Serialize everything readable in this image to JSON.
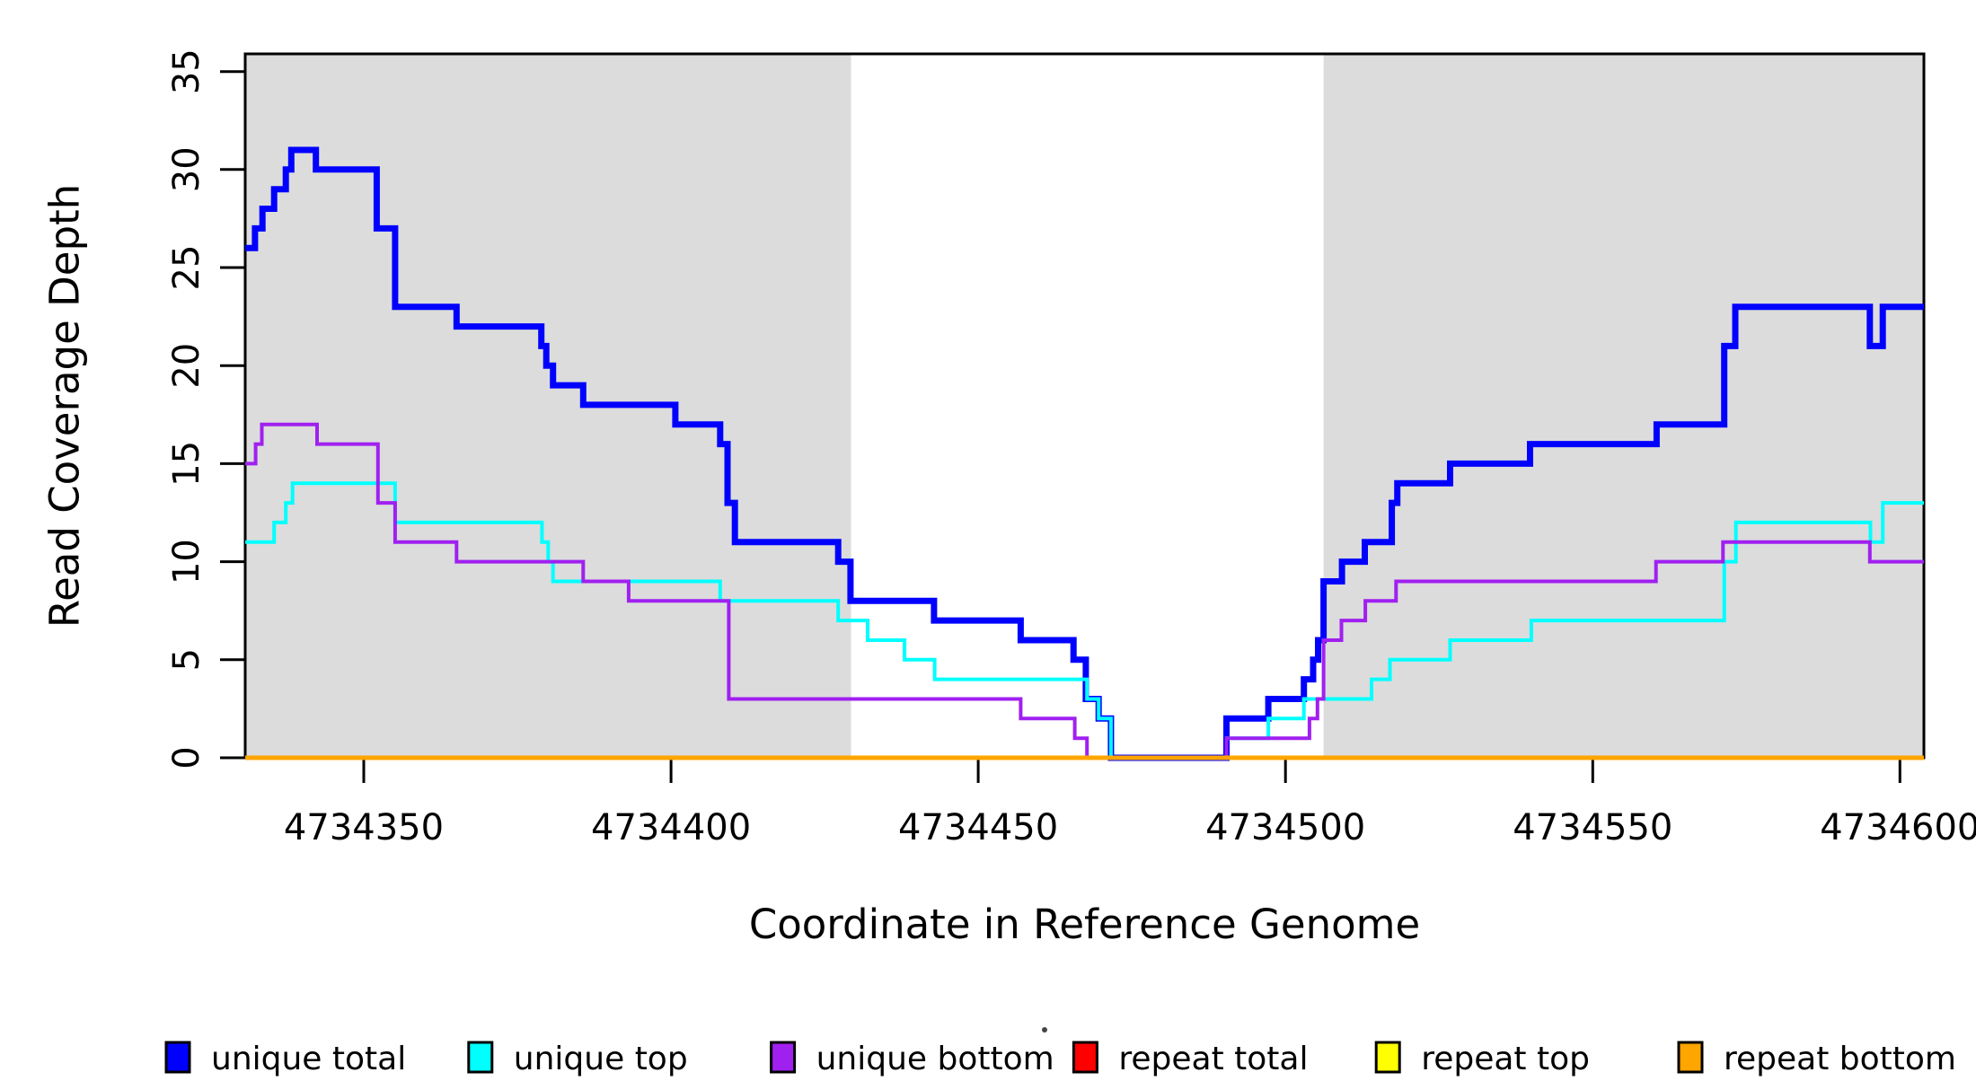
{
  "figure": {
    "background": "#ffffff"
  },
  "chart_data": {
    "type": "line",
    "subtype": "step-coverage",
    "title": "",
    "xlabel": "Coordinate in Reference Genome",
    "ylabel": "Read Coverage Depth",
    "xlim": [
      4734330.7,
      4734603.9
    ],
    "ylim": [
      0,
      35.9
    ],
    "grid": false,
    "xticks": [
      {
        "value": 4734350,
        "label": "4734350"
      },
      {
        "value": 4734400,
        "label": "4734400"
      },
      {
        "value": 4734450,
        "label": "4734450"
      },
      {
        "value": 4734500,
        "label": "4734500"
      },
      {
        "value": 4734550,
        "label": "4734550"
      },
      {
        "value": 4734600,
        "label": "4734600"
      }
    ],
    "yticks": [
      {
        "value": 0,
        "label": "0"
      },
      {
        "value": 5,
        "label": "5"
      },
      {
        "value": 10,
        "label": "10"
      },
      {
        "value": 15,
        "label": "15"
      },
      {
        "value": 20,
        "label": "20"
      },
      {
        "value": 25,
        "label": "25"
      },
      {
        "value": 30,
        "label": "30"
      },
      {
        "value": 35,
        "label": "35"
      }
    ],
    "shaded_regions": [
      {
        "x0": 4734330.7,
        "x1": 4734429.3,
        "color": "#DCDCDC"
      },
      {
        "x0": 4734506.2,
        "x1": 4734603.9,
        "color": "#DCDCDC"
      }
    ],
    "series": [
      {
        "name": "unique total",
        "color": "#0000FF",
        "stroke_width": 7,
        "steps": [
          [
            4734330.7,
            26
          ],
          [
            4734332.3,
            27
          ],
          [
            4734333.5,
            28
          ],
          [
            4734335.4,
            29
          ],
          [
            4734337.3,
            30
          ],
          [
            4734338.2,
            31
          ],
          [
            4734342.2,
            30
          ],
          [
            4734352.1,
            27
          ],
          [
            4734355.1,
            23
          ],
          [
            4734365.1,
            22
          ],
          [
            4734378.9,
            21
          ],
          [
            4734379.7,
            20
          ],
          [
            4734380.8,
            19
          ],
          [
            4734385.7,
            18
          ],
          [
            4734400.7,
            17
          ],
          [
            4734408.0,
            16
          ],
          [
            4734409.2,
            13
          ],
          [
            4734410.4,
            11
          ],
          [
            4734427.2,
            10
          ],
          [
            4734429.2,
            8
          ],
          [
            4734442.8,
            7
          ],
          [
            4734456.9,
            6
          ],
          [
            4734465.5,
            5
          ],
          [
            4734467.5,
            3
          ],
          [
            4734469.6,
            2
          ],
          [
            4734471.6,
            0
          ],
          [
            4734490.4,
            2
          ],
          [
            4734497.2,
            3
          ],
          [
            4734503.0,
            4
          ],
          [
            4734504.5,
            5
          ],
          [
            4734505.3,
            6
          ],
          [
            4734506.2,
            9
          ],
          [
            4734509.2,
            10
          ],
          [
            4734512.9,
            11
          ],
          [
            4734517.3,
            13
          ],
          [
            4734518.2,
            14
          ],
          [
            4734526.8,
            15
          ],
          [
            4734539.8,
            16
          ],
          [
            4734560.4,
            17
          ],
          [
            4734571.4,
            21
          ],
          [
            4734573.2,
            23
          ],
          [
            4734595.1,
            21
          ],
          [
            4734597.2,
            23
          ],
          [
            4734603.9,
            23
          ]
        ]
      },
      {
        "name": "unique top",
        "color": "#00FFFF",
        "stroke_width": 4,
        "steps": [
          [
            4734330.7,
            11
          ],
          [
            4734335.4,
            12
          ],
          [
            4734337.3,
            13
          ],
          [
            4734338.4,
            14
          ],
          [
            4734355.1,
            12
          ],
          [
            4734379.0,
            11
          ],
          [
            4734380.0,
            10
          ],
          [
            4734380.8,
            9
          ],
          [
            4734408.0,
            8
          ],
          [
            4734427.2,
            7
          ],
          [
            4734432.0,
            6
          ],
          [
            4734438.0,
            5
          ],
          [
            4734442.9,
            4
          ],
          [
            4734467.7,
            3
          ],
          [
            4734469.6,
            2
          ],
          [
            4734471.6,
            0
          ],
          [
            4734490.4,
            1
          ],
          [
            4734497.2,
            2
          ],
          [
            4734503.0,
            3
          ],
          [
            4734514.0,
            4
          ],
          [
            4734517.0,
            5
          ],
          [
            4734526.8,
            6
          ],
          [
            4734540.0,
            7
          ],
          [
            4734571.4,
            10
          ],
          [
            4734573.3,
            12
          ],
          [
            4734595.2,
            11
          ],
          [
            4734597.2,
            13
          ],
          [
            4734603.9,
            13
          ]
        ]
      },
      {
        "name": "unique bottom",
        "color": "#A020F0",
        "stroke_width": 4,
        "steps": [
          [
            4734330.7,
            15
          ],
          [
            4734332.4,
            16
          ],
          [
            4734333.4,
            17
          ],
          [
            4734342.4,
            16
          ],
          [
            4734352.3,
            13
          ],
          [
            4734355.1,
            11
          ],
          [
            4734365.1,
            10
          ],
          [
            4734385.7,
            9
          ],
          [
            4734393.1,
            8
          ],
          [
            4734409.4,
            3
          ],
          [
            4734456.9,
            2
          ],
          [
            4734465.7,
            1
          ],
          [
            4734467.7,
            0
          ],
          [
            4734490.4,
            1
          ],
          [
            4734503.9,
            2
          ],
          [
            4734505.2,
            3
          ],
          [
            4734506.2,
            6
          ],
          [
            4734509.1,
            7
          ],
          [
            4734513.0,
            8
          ],
          [
            4734518.0,
            9
          ],
          [
            4734560.3,
            10
          ],
          [
            4734571.2,
            11
          ],
          [
            4734595.1,
            10
          ],
          [
            4734603.9,
            10
          ]
        ]
      },
      {
        "name": "repeat total",
        "color": "#FF0000",
        "stroke_width": 4,
        "steps": [
          [
            4734330.7,
            0
          ],
          [
            4734603.9,
            0
          ]
        ]
      },
      {
        "name": "repeat top",
        "color": "#FFFF00",
        "stroke_width": 4,
        "steps": [
          [
            4734330.7,
            0
          ],
          [
            4734603.9,
            0
          ]
        ]
      },
      {
        "name": "repeat bottom",
        "color": "#FFA500",
        "stroke_width": 5,
        "steps": [
          [
            4734330.7,
            0
          ],
          [
            4734603.9,
            0
          ]
        ]
      }
    ],
    "legend": {
      "position": "bottom",
      "entries": [
        {
          "label": "unique total",
          "color": "#0000FF"
        },
        {
          "label": "unique top",
          "color": "#00FFFF"
        },
        {
          "label": "unique bottom",
          "color": "#A020F0"
        },
        {
          "label": "repeat total",
          "color": "#FF0000"
        },
        {
          "label": "repeat top",
          "color": "#FFFF00"
        },
        {
          "label": "repeat bottom",
          "color": "#FFA500"
        }
      ]
    }
  }
}
